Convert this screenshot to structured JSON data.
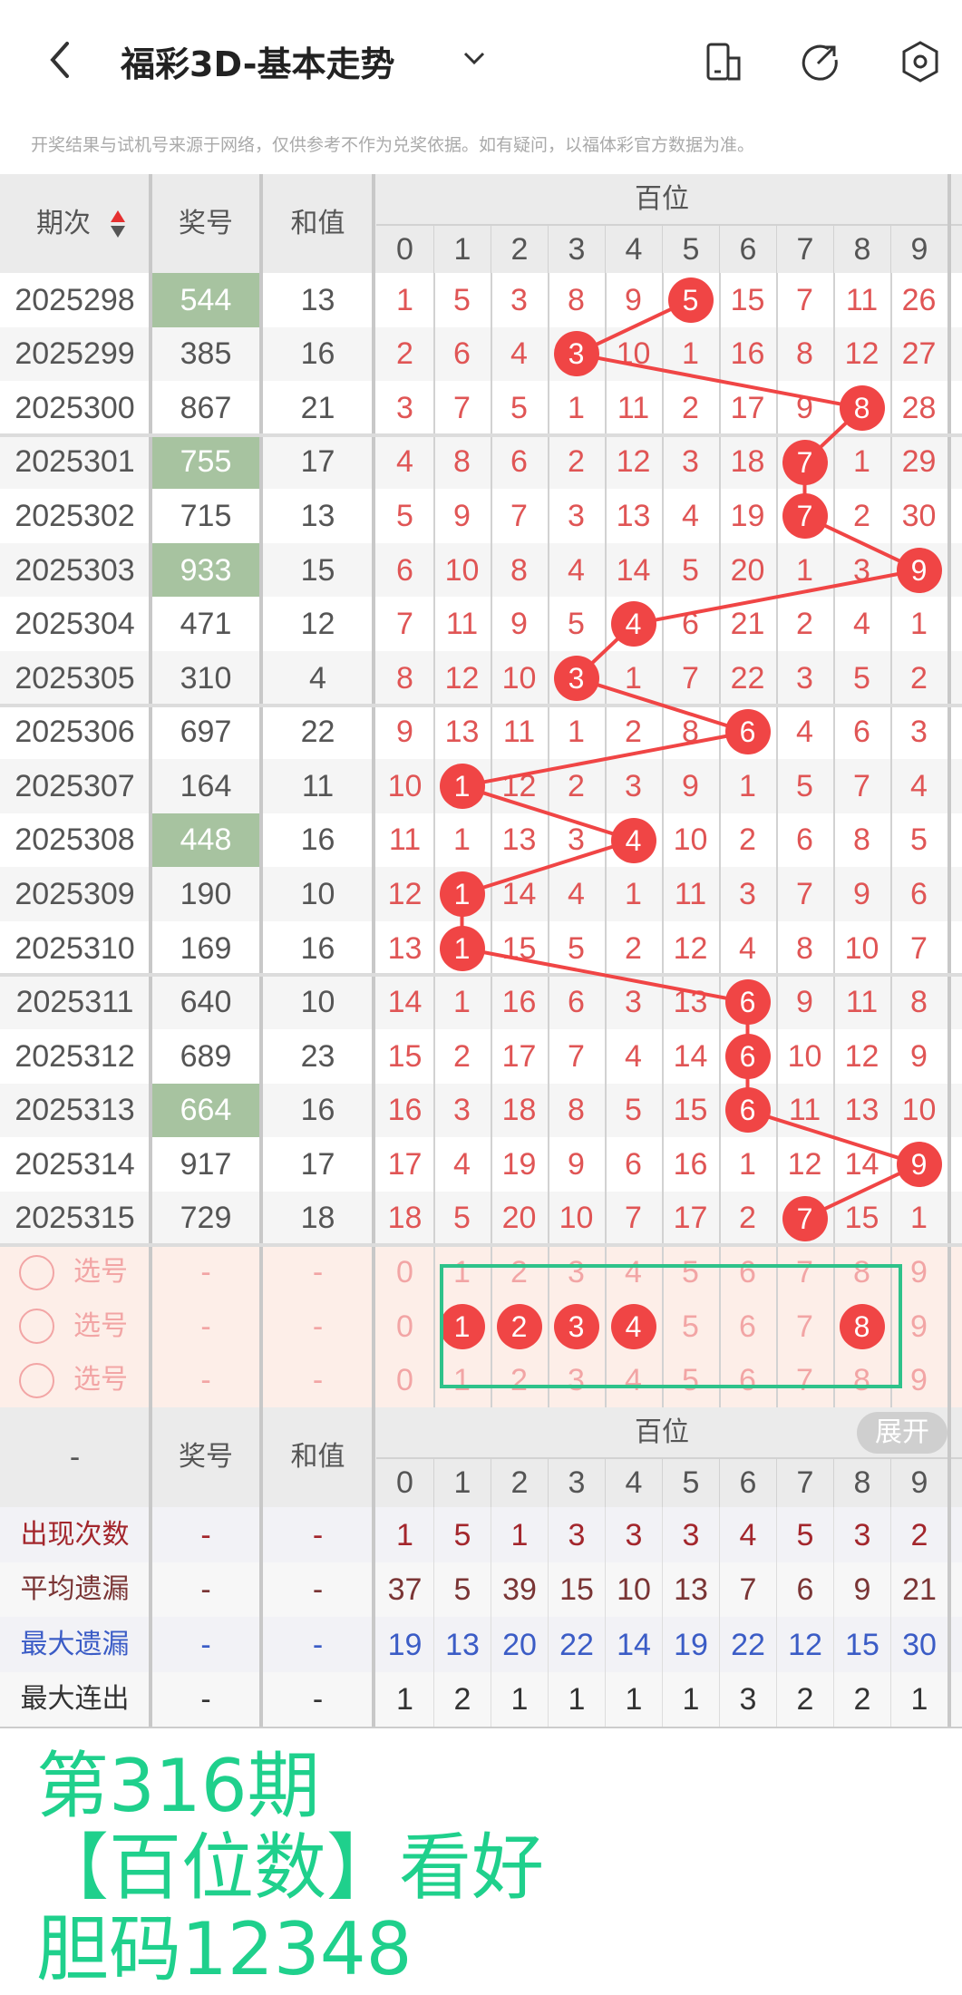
{
  "header": {
    "title": "福彩3D-基本走势",
    "back_icon": "chevron-left-icon",
    "dropdown_icon": "chevron-down-icon",
    "icons": [
      "device-switch-icon",
      "share-icon",
      "settings-icon"
    ]
  },
  "disclaimer": "开奖结果与试机号来源于网络，仅供参考不作为兑奖依据。如有疑问，以福体彩官方数据为准。",
  "columns": {
    "period": "期次",
    "number": "奖号",
    "sum": "和值",
    "group": "百位",
    "digits": [
      "0",
      "1",
      "2",
      "3",
      "4",
      "5",
      "6",
      "7",
      "8",
      "9"
    ],
    "sort_icon": "sort-up-down-icon"
  },
  "colors": {
    "ball": "#f04545",
    "omission_text": "#e05555",
    "pair_highlight": "#a7c3a0",
    "overlay": "#1fd08c",
    "select_bg": "#fdeee8"
  },
  "rows": [
    {
      "period": "2025298",
      "number": "544",
      "sum": "13",
      "pair": true,
      "hit": 5,
      "values": [
        "1",
        "5",
        "3",
        "8",
        "9",
        "5",
        "15",
        "7",
        "11",
        "26"
      ]
    },
    {
      "period": "2025299",
      "number": "385",
      "sum": "16",
      "pair": false,
      "hit": 3,
      "values": [
        "2",
        "6",
        "4",
        "3",
        "10",
        "1",
        "16",
        "8",
        "12",
        "27"
      ]
    },
    {
      "period": "2025300",
      "number": "867",
      "sum": "21",
      "pair": false,
      "hit": 8,
      "values": [
        "3",
        "7",
        "5",
        "1",
        "11",
        "2",
        "17",
        "9",
        "8",
        "28"
      ]
    },
    {
      "period": "2025301",
      "number": "755",
      "sum": "17",
      "pair": true,
      "hit": 7,
      "values": [
        "4",
        "8",
        "6",
        "2",
        "12",
        "3",
        "18",
        "7",
        "1",
        "29"
      ]
    },
    {
      "period": "2025302",
      "number": "715",
      "sum": "13",
      "pair": false,
      "hit": 7,
      "values": [
        "5",
        "9",
        "7",
        "3",
        "13",
        "4",
        "19",
        "7",
        "2",
        "30"
      ]
    },
    {
      "period": "2025303",
      "number": "933",
      "sum": "15",
      "pair": true,
      "hit": 9,
      "values": [
        "6",
        "10",
        "8",
        "4",
        "14",
        "5",
        "20",
        "1",
        "3",
        "9"
      ]
    },
    {
      "period": "2025304",
      "number": "471",
      "sum": "12",
      "pair": false,
      "hit": 4,
      "values": [
        "7",
        "11",
        "9",
        "5",
        "4",
        "6",
        "21",
        "2",
        "4",
        "1"
      ]
    },
    {
      "period": "2025305",
      "number": "310",
      "sum": "4",
      "pair": false,
      "hit": 3,
      "values": [
        "8",
        "12",
        "10",
        "3",
        "1",
        "7",
        "22",
        "3",
        "5",
        "2"
      ]
    },
    {
      "period": "2025306",
      "number": "697",
      "sum": "22",
      "pair": false,
      "hit": 6,
      "values": [
        "9",
        "13",
        "11",
        "1",
        "2",
        "8",
        "6",
        "4",
        "6",
        "3"
      ]
    },
    {
      "period": "2025307",
      "number": "164",
      "sum": "11",
      "pair": false,
      "hit": 1,
      "values": [
        "10",
        "1",
        "12",
        "2",
        "3",
        "9",
        "1",
        "5",
        "7",
        "4"
      ]
    },
    {
      "period": "2025308",
      "number": "448",
      "sum": "16",
      "pair": true,
      "hit": 4,
      "values": [
        "11",
        "1",
        "13",
        "3",
        "4",
        "10",
        "2",
        "6",
        "8",
        "5"
      ]
    },
    {
      "period": "2025309",
      "number": "190",
      "sum": "10",
      "pair": false,
      "hit": 1,
      "values": [
        "12",
        "1",
        "14",
        "4",
        "1",
        "11",
        "3",
        "7",
        "9",
        "6"
      ]
    },
    {
      "period": "2025310",
      "number": "169",
      "sum": "16",
      "pair": false,
      "hit": 1,
      "values": [
        "13",
        "1",
        "15",
        "5",
        "2",
        "12",
        "4",
        "8",
        "10",
        "7"
      ]
    },
    {
      "period": "2025311",
      "number": "640",
      "sum": "10",
      "pair": false,
      "hit": 6,
      "values": [
        "14",
        "1",
        "16",
        "6",
        "3",
        "13",
        "6",
        "9",
        "11",
        "8"
      ]
    },
    {
      "period": "2025312",
      "number": "689",
      "sum": "23",
      "pair": false,
      "hit": 6,
      "values": [
        "15",
        "2",
        "17",
        "7",
        "4",
        "14",
        "6",
        "10",
        "12",
        "9"
      ]
    },
    {
      "period": "2025313",
      "number": "664",
      "sum": "16",
      "pair": true,
      "hit": 6,
      "values": [
        "16",
        "3",
        "18",
        "8",
        "5",
        "15",
        "6",
        "11",
        "13",
        "10"
      ]
    },
    {
      "period": "2025314",
      "number": "917",
      "sum": "17",
      "pair": false,
      "hit": 9,
      "values": [
        "17",
        "4",
        "19",
        "9",
        "6",
        "16",
        "1",
        "12",
        "14",
        "9"
      ]
    },
    {
      "period": "2025315",
      "number": "729",
      "sum": "18",
      "pair": false,
      "hit": 7,
      "values": [
        "18",
        "5",
        "20",
        "10",
        "7",
        "17",
        "2",
        "7",
        "15",
        "1"
      ]
    }
  ],
  "select_rows": [
    {
      "label": "选号",
      "number": "-",
      "sum": "-",
      "selected": []
    },
    {
      "label": "选号",
      "number": "-",
      "sum": "-",
      "selected": [
        1,
        2,
        3,
        4,
        8
      ]
    },
    {
      "label": "选号",
      "number": "-",
      "sum": "-",
      "selected": []
    }
  ],
  "footer_header": {
    "period": "-",
    "number": "奖号",
    "sum": "和值",
    "group": "百位",
    "expand_button": "展开"
  },
  "stats": [
    {
      "label": "出现次数",
      "number": "-",
      "sum": "-",
      "color": "#a3262c",
      "values": [
        "1",
        "5",
        "1",
        "3",
        "3",
        "3",
        "4",
        "5",
        "3",
        "2"
      ]
    },
    {
      "label": "平均遗漏",
      "number": "-",
      "sum": "-",
      "color": "#7a3535",
      "values": [
        "37",
        "5",
        "39",
        "15",
        "10",
        "13",
        "7",
        "6",
        "9",
        "21"
      ]
    },
    {
      "label": "最大遗漏",
      "number": "-",
      "sum": "-",
      "color": "#3b5cc6",
      "values": [
        "19",
        "13",
        "20",
        "22",
        "14",
        "19",
        "22",
        "12",
        "15",
        "30"
      ]
    },
    {
      "label": "最大连出",
      "number": "-",
      "sum": "-",
      "color": "#333333",
      "values": [
        "1",
        "2",
        "1",
        "1",
        "1",
        "1",
        "3",
        "2",
        "2",
        "1"
      ]
    }
  ],
  "overlay": {
    "issue": "第316期",
    "line1": "【百位数】看好",
    "line2": "胆码12348"
  }
}
